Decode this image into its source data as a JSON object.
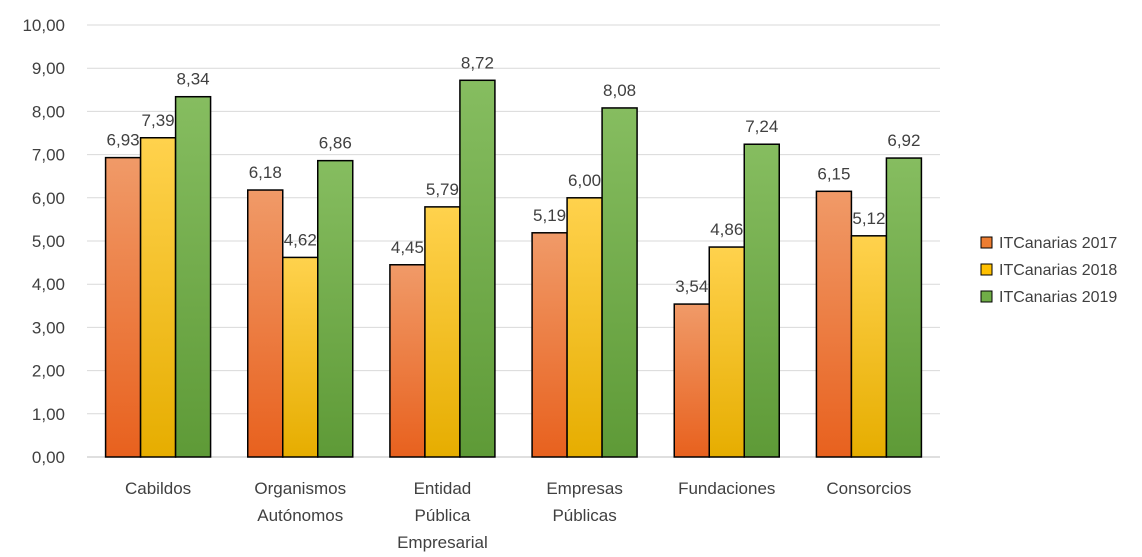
{
  "chart_data": {
    "type": "bar",
    "categories": [
      [
        "Cabildos"
      ],
      [
        "Organismos",
        "Autónomos"
      ],
      [
        "Entidad",
        "Pública",
        "Empresarial"
      ],
      [
        "Empresas",
        "Públicas"
      ],
      [
        "Fundaciones"
      ],
      [
        "Consorcios"
      ]
    ],
    "series": [
      {
        "name": "ITCanarias 2017",
        "values": [
          6.93,
          6.18,
          4.45,
          5.19,
          3.54,
          6.15
        ],
        "labels": [
          "6,93",
          "6,18",
          "4,45",
          "5,19",
          "3,54",
          "6,15"
        ],
        "color_top": "#f09a68",
        "color_bottom": "#e8611e",
        "legend_color": "#ed7d31"
      },
      {
        "name": "ITCanarias 2018",
        "values": [
          7.39,
          4.62,
          5.79,
          6.0,
          4.86,
          5.12
        ],
        "labels": [
          "7,39",
          "4,62",
          "5,79",
          "6,00",
          "4,86",
          "5,12"
        ],
        "color_top": "#ffd24d",
        "color_bottom": "#e6ad00",
        "legend_color": "#ffc000"
      },
      {
        "name": "ITCanarias 2019",
        "values": [
          8.34,
          6.86,
          8.72,
          8.08,
          7.24,
          6.92
        ],
        "labels": [
          "8,34",
          "6,86",
          "8,72",
          "8,08",
          "7,24",
          "6,92"
        ],
        "color_top": "#86bd60",
        "color_bottom": "#5e9a37",
        "legend_color": "#70ad47"
      }
    ],
    "ylim": [
      0,
      10
    ],
    "yticks": [
      "0,00",
      "1,00",
      "2,00",
      "3,00",
      "4,00",
      "5,00",
      "6,00",
      "7,00",
      "8,00",
      "9,00",
      "10,00"
    ],
    "grid": true,
    "legend_position": "right",
    "title": "",
    "xlabel": "",
    "ylabel": ""
  }
}
